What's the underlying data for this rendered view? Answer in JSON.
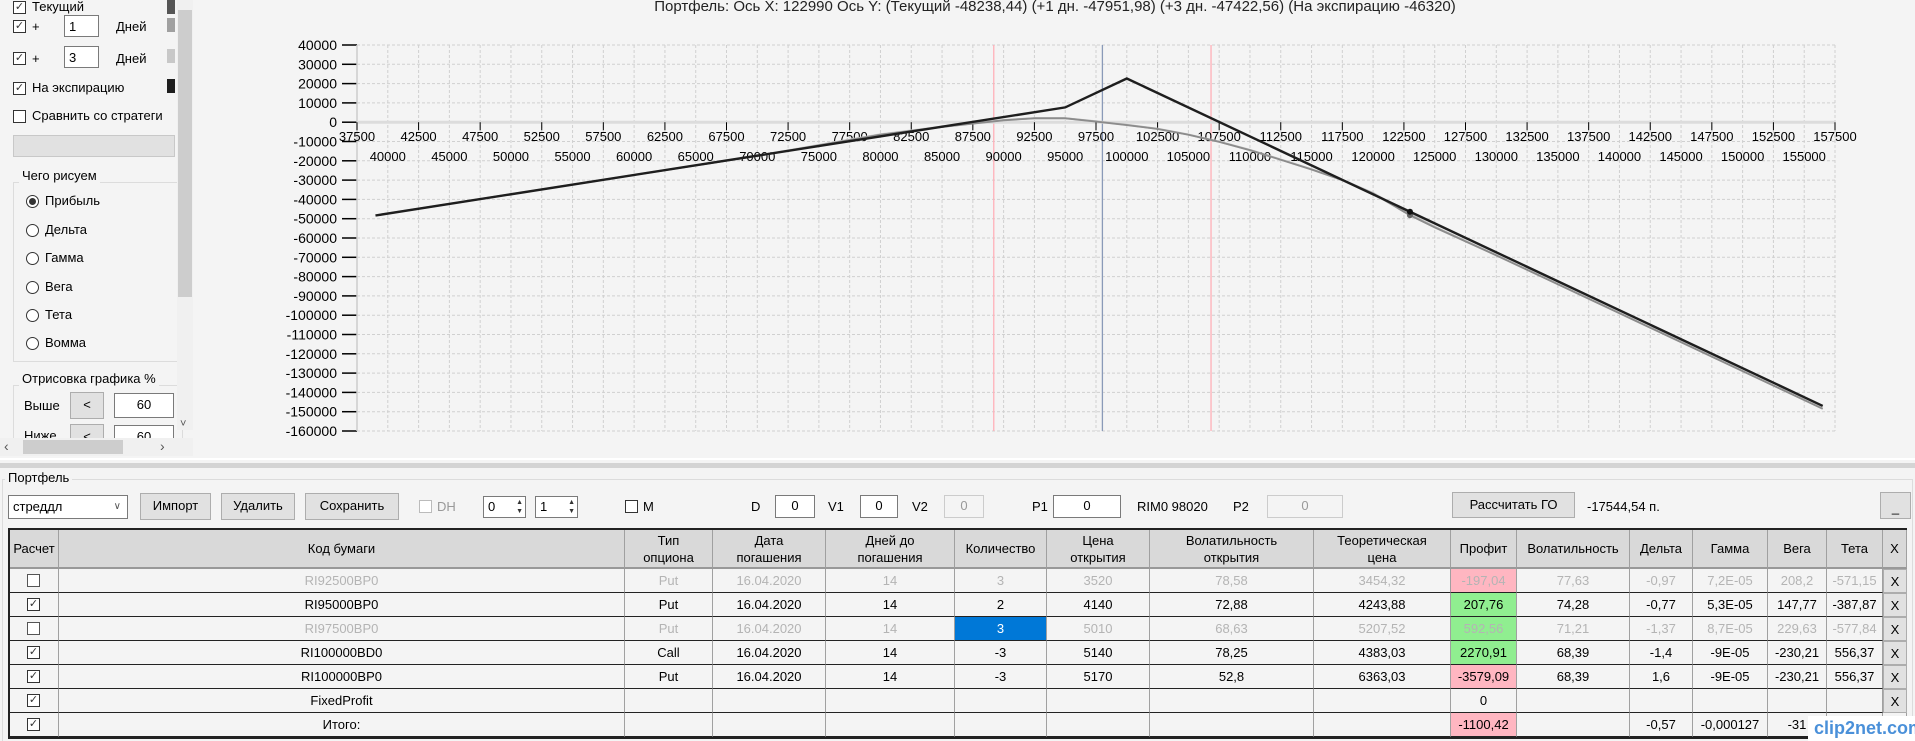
{
  "left_panel": {
    "current_label": "Текущий",
    "plus": "+",
    "day1_value": "1",
    "day3_value": "3",
    "days_label": "Дней",
    "expiration_label": "На экспирацию",
    "compare_label": "Сравнить со стратеги",
    "draw_group_label": "Чего рисуем",
    "radios": [
      "Прибыль",
      "Дельта",
      "Гамма",
      "Вега",
      "Тета",
      "Вомма"
    ],
    "selected_radio": "Прибыль",
    "range_group_label": "Отрисовка графика %",
    "above_label": "Выше",
    "below_label": "Ниже",
    "arrow_label": "<",
    "above_value": "60",
    "below_value": "60",
    "scroll_down": "˅",
    "scroll_left": "‹",
    "scroll_right": "›",
    "swatch_colors": {
      "current": "#555555",
      "day1": "#a0a0a0",
      "day3": "#c8c8c8",
      "expiration": "#1e1e1e"
    }
  },
  "chart": {
    "title": "Портфель: Ось X: 122990 Ось Y:  (Текущий -48238,44)  (+1 дн. -47951,98)  (+3 дн. -47422,56)  (На экспирацию -46320)"
  },
  "chart_data": {
    "type": "line",
    "xlim": [
      37500,
      157500
    ],
    "ylim": [
      -160000,
      40000
    ],
    "grid": true,
    "x_ticks_row1": [
      37500,
      42500,
      47500,
      52500,
      57500,
      62500,
      67500,
      72500,
      77500,
      82500,
      87500,
      92500,
      97500,
      102500,
      107500,
      112500,
      117500,
      122500,
      127500,
      132500,
      137500,
      142500,
      147500,
      152500,
      157500
    ],
    "x_ticks_row2": [
      40000,
      45000,
      50000,
      55000,
      60000,
      65000,
      70000,
      75000,
      80000,
      85000,
      90000,
      95000,
      100000,
      105000,
      110000,
      115000,
      120000,
      125000,
      130000,
      135000,
      140000,
      145000,
      150000,
      155000
    ],
    "y_ticks": [
      40000,
      30000,
      20000,
      10000,
      0,
      -10000,
      -20000,
      -30000,
      -40000,
      -50000,
      -60000,
      -70000,
      -80000,
      -90000,
      -100000,
      -110000,
      -120000,
      -130000,
      -140000,
      -150000,
      -160000
    ],
    "cursor_x": 122990,
    "reference_lines": [
      {
        "x": 98020,
        "color": "#8a9ab8"
      },
      {
        "x": 89200,
        "color": "#ffb0b8"
      },
      {
        "x": 106840,
        "color": "#ffb0b8"
      }
    ],
    "series": [
      {
        "key": "day3",
        "color": "#cfcfcf",
        "points": [
          [
            39000,
            -48200
          ],
          [
            60000,
            -27200
          ],
          [
            70000,
            -17300
          ],
          [
            75000,
            -11700
          ],
          [
            80000,
            -6200
          ],
          [
            85000,
            -2200
          ],
          [
            90000,
            1200
          ],
          [
            92500,
            2100
          ],
          [
            95000,
            2100
          ],
          [
            97500,
            500
          ],
          [
            100000,
            -1300
          ],
          [
            102500,
            -3300
          ],
          [
            105000,
            -6300
          ],
          [
            107500,
            -10000
          ],
          [
            110000,
            -14300
          ],
          [
            112500,
            -19300
          ],
          [
            115000,
            -24300
          ],
          [
            117500,
            -29800
          ],
          [
            120000,
            -36600
          ],
          [
            122990,
            -47422.56
          ],
          [
            125000,
            -54100
          ],
          [
            130000,
            -68800
          ],
          [
            140000,
            -98800
          ],
          [
            156500,
            -148400
          ]
        ]
      },
      {
        "key": "day1",
        "color": "#b0b0b0",
        "points": [
          [
            39000,
            -48300
          ],
          [
            60000,
            -27300
          ],
          [
            70000,
            -17450
          ],
          [
            75000,
            -11900
          ],
          [
            80000,
            -6400
          ],
          [
            85000,
            -2400
          ],
          [
            90000,
            1100
          ],
          [
            92500,
            2050
          ],
          [
            95000,
            2050
          ],
          [
            97500,
            400
          ],
          [
            100000,
            -1400
          ],
          [
            102500,
            -3400
          ],
          [
            105000,
            -6400
          ],
          [
            107500,
            -10100
          ],
          [
            110000,
            -14400
          ],
          [
            112500,
            -19400
          ],
          [
            115000,
            -24400
          ],
          [
            117500,
            -29900
          ],
          [
            120000,
            -36800
          ],
          [
            122990,
            -47951.98
          ],
          [
            125000,
            -54300
          ],
          [
            130000,
            -68900
          ],
          [
            140000,
            -98900
          ],
          [
            156500,
            -148400
          ]
        ]
      },
      {
        "key": "current",
        "color": "#8c8c8c",
        "points": [
          [
            39000,
            -48350
          ],
          [
            60000,
            -27350
          ],
          [
            70000,
            -17500
          ],
          [
            75000,
            -12000
          ],
          [
            80000,
            -6500
          ],
          [
            85000,
            -2500
          ],
          [
            90000,
            1000
          ],
          [
            92500,
            2000
          ],
          [
            95000,
            2000
          ],
          [
            97500,
            300
          ],
          [
            100000,
            -1500
          ],
          [
            102500,
            -3500
          ],
          [
            105000,
            -6500
          ],
          [
            107500,
            -10200
          ],
          [
            110000,
            -14500
          ],
          [
            112500,
            -19500
          ],
          [
            115000,
            -24500
          ],
          [
            117500,
            -30000
          ],
          [
            120000,
            -37000
          ],
          [
            122990,
            -48238.44
          ],
          [
            125000,
            -54500
          ],
          [
            130000,
            -69000
          ],
          [
            140000,
            -99000
          ],
          [
            156500,
            -148500
          ]
        ]
      },
      {
        "key": "expiration",
        "color": "#1e1e1e",
        "points": [
          [
            39000,
            -48350
          ],
          [
            95000,
            7650
          ],
          [
            100000,
            22650
          ],
          [
            156500,
            -147000
          ]
        ]
      }
    ]
  },
  "portfolio": {
    "group_label": "Портфель",
    "strategy": "стреддл",
    "import_label": "Импорт",
    "delete_label": "Удалить",
    "save_label": "Сохранить",
    "dh_label": "DH",
    "spin1": "0",
    "spin2": "1",
    "m_label": "M",
    "d_label": "D",
    "d_value": "0",
    "v1_label": "V1",
    "v1_value": "0",
    "v2_label": "V2",
    "v2_value": "0",
    "p1_label": "P1",
    "p1_value": "0",
    "futures": "RIM0 98020",
    "p2_label": "P2",
    "p2_value": "0",
    "calc_go_label": "Рассчитать ГО",
    "go_value": "-17544,54 п.",
    "minimize_label": "_"
  },
  "table": {
    "headers": [
      "Расчет",
      "Код бумаги",
      "Тип\nопциона",
      "Дата\nпогашения",
      "Дней до\nпогашения",
      "Количество",
      "Цена\nоткрытия",
      "Волатильность\nоткрытия",
      "Теоретическая\nцена",
      "Профит",
      "Волатильность",
      "Дельта",
      "Гамма",
      "Вега",
      "Тета",
      "X"
    ],
    "colors": {
      "profit_positive": "#90ee90",
      "profit_negative": "#ffb6c1",
      "selected": "#0078d7",
      "disabled_text": "#b4b4b4"
    },
    "rows": [
      {
        "checked": false,
        "enabled": false,
        "profit_sign": "neg",
        "cells": [
          "RI92500BP0",
          "Put",
          "16.04.2020",
          "14",
          "3",
          "3520",
          "78,58",
          "3454,32",
          "-197,04",
          "77,63",
          "-0,97",
          "7,2E-05",
          "208,2",
          "-571,15",
          "X"
        ]
      },
      {
        "checked": true,
        "enabled": true,
        "profit_sign": "pos",
        "cells": [
          "RI95000BP0",
          "Put",
          "16.04.2020",
          "14",
          "2",
          "4140",
          "72,88",
          "4243,88",
          "207,76",
          "74,28",
          "-0,77",
          "5,3E-05",
          "147,77",
          "-387,87",
          "X"
        ]
      },
      {
        "checked": false,
        "enabled": false,
        "profit_sign": "pos",
        "selected_col": 4,
        "cells": [
          "RI97500BP0",
          "Put",
          "16.04.2020",
          "14",
          "3",
          "5010",
          "68,63",
          "5207,52",
          "592,56",
          "71,21",
          "-1,37",
          "8,7E-05",
          "229,63",
          "-577,84",
          "X"
        ]
      },
      {
        "checked": true,
        "enabled": true,
        "profit_sign": "pos",
        "cells": [
          "RI100000BD0",
          "Call",
          "16.04.2020",
          "14",
          "-3",
          "5140",
          "78,25",
          "4383,03",
          "2270,91",
          "68,39",
          "-1,4",
          "-9E-05",
          "-230,21",
          "556,37",
          "X"
        ]
      },
      {
        "checked": true,
        "enabled": true,
        "profit_sign": "neg",
        "cells": [
          "RI100000BP0",
          "Put",
          "16.04.2020",
          "14",
          "-3",
          "5170",
          "52,8",
          "6363,03",
          "-3579,09",
          "68,39",
          "1,6",
          "-9E-05",
          "-230,21",
          "556,37",
          "X"
        ]
      },
      {
        "checked": true,
        "enabled": true,
        "profit_sign": "none",
        "cells": [
          "FixedProfit",
          "",
          "",
          "",
          "",
          "",
          "",
          "",
          "0",
          "",
          "",
          "",
          "",
          "",
          "X"
        ]
      },
      {
        "checked": true,
        "enabled": true,
        "profit_sign": "neg",
        "cells": [
          "Итого:",
          "",
          "",
          "",
          "",
          "",
          "",
          "",
          "-1100,42",
          "",
          "-0,57",
          "-0,000127",
          "-31",
          "",
          ""
        ]
      }
    ]
  },
  "watermark": "clip2net.com"
}
